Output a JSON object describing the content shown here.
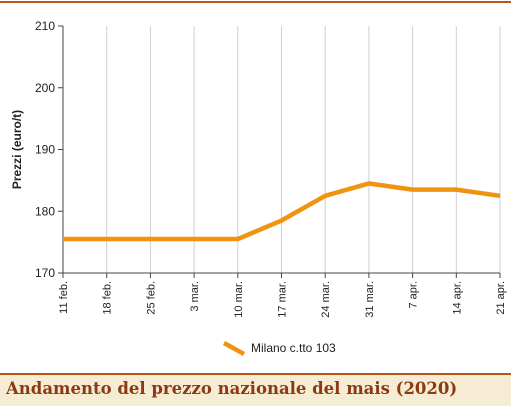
{
  "caption": "Andamento del prezzo nazionale del mais (2020)",
  "colors": {
    "accent": "#b8551a",
    "line": "#f0940f",
    "footer_bg": "#f6ecd4",
    "caption": "#8b3a12"
  },
  "chart_data": {
    "type": "line",
    "title": "",
    "xlabel": "",
    "ylabel": "Prezzi (euro/t)",
    "ylim": [
      170,
      210
    ],
    "yticks": [
      170,
      180,
      190,
      200,
      210
    ],
    "grid": "vertical",
    "legend_position": "bottom-center",
    "categories": [
      "11 feb.",
      "18 feb.",
      "25 feb.",
      "3 mar.",
      "10 mar.",
      "17 mar.",
      "24 mar.",
      "31 mar.",
      "7 apr.",
      "14 apr.",
      "21 apr."
    ],
    "series": [
      {
        "name": "Milano  c.tto 103",
        "color": "#f0940f",
        "values": [
          175.5,
          175.5,
          175.5,
          175.5,
          175.5,
          178.5,
          182.5,
          184.5,
          183.5,
          183.5,
          182.5
        ]
      }
    ]
  }
}
